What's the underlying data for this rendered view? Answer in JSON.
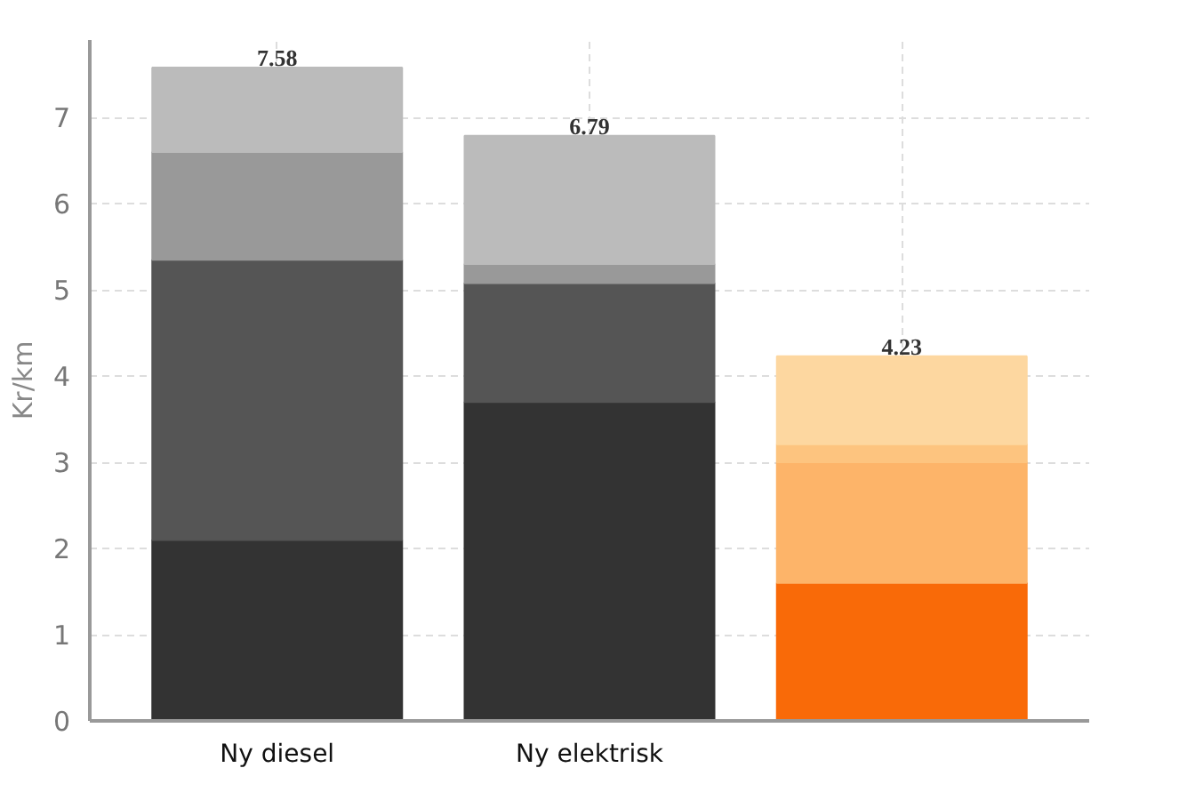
{
  "chart_data": {
    "type": "bar",
    "stacked": true,
    "ylabel": "Kr/km",
    "categories": [
      "Ny diesel",
      "Ny elektrisk",
      null
    ],
    "series": [
      {
        "colors": [
          "#333333",
          "#333333",
          "#f96a08"
        ],
        "values": [
          2.1,
          3.7,
          1.6
        ]
      },
      {
        "colors": [
          "#555555",
          "#555555",
          "#fdb469"
        ],
        "values": [
          3.25,
          1.38,
          1.4
        ]
      },
      {
        "colors": [
          "#999999",
          "#999999",
          "#fdc47f"
        ],
        "values": [
          1.25,
          0.22,
          0.21
        ]
      },
      {
        "colors": [
          "#bbbbbb",
          "#bbbbbb",
          "#fdd7a0"
        ],
        "values": [
          0.98,
          1.49,
          1.02
        ]
      }
    ],
    "totals": [
      "7.58",
      "6.79",
      "4.23"
    ],
    "ylim": [
      0,
      7.9
    ],
    "yticks": [
      0,
      1,
      2,
      3,
      4,
      5,
      6,
      7
    ],
    "grid": true
  }
}
